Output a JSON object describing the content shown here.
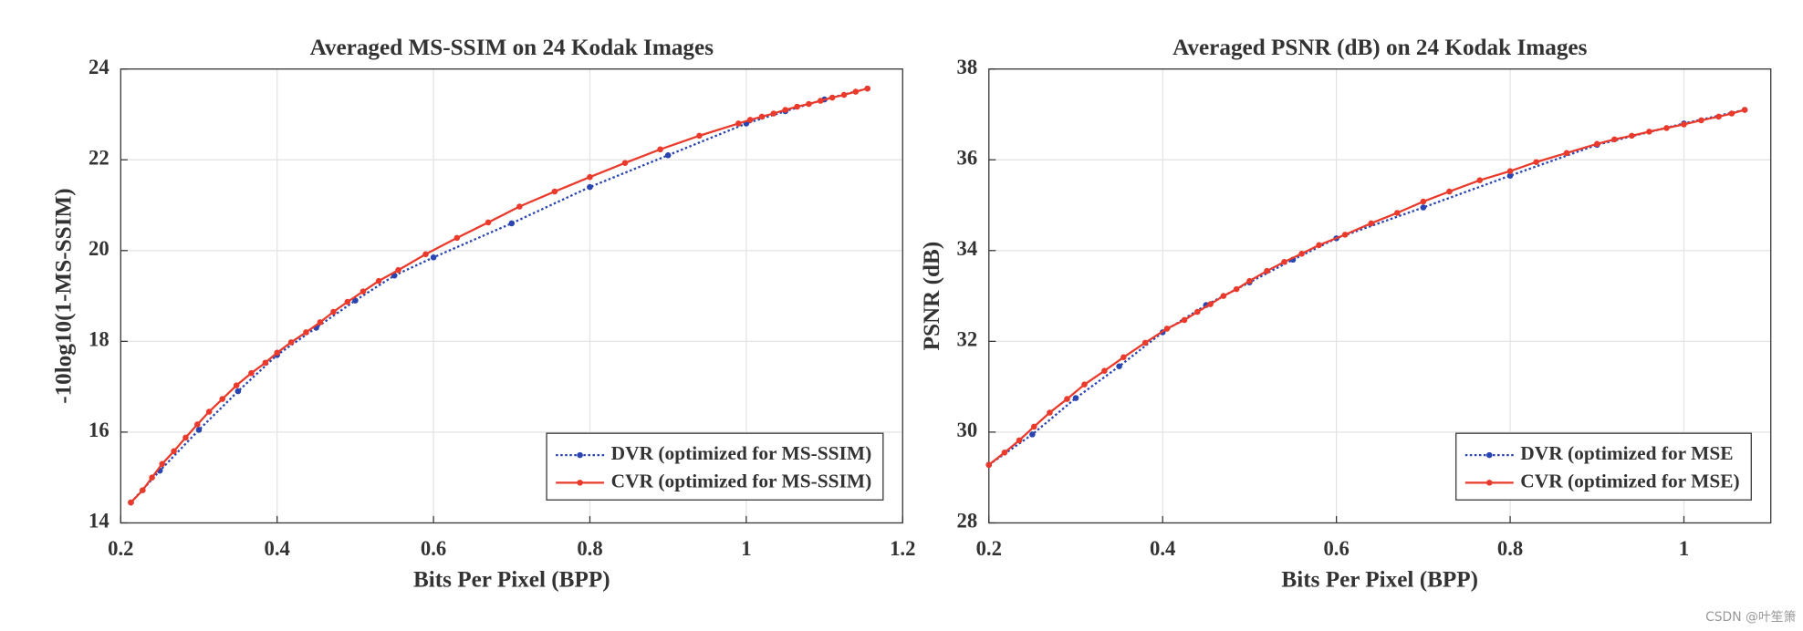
{
  "chart_data": [
    {
      "type": "line",
      "title": "Averaged MS-SSIM on 24 Kodak Images",
      "xlabel": "Bits Per Pixel (BPP)",
      "ylabel": "-10log10(1-MS-SSIM)",
      "xlim": [
        0.2,
        1.2
      ],
      "ylim": [
        14,
        24
      ],
      "xticks": [
        0.2,
        0.4,
        0.6,
        0.8,
        1,
        1.2
      ],
      "yticks": [
        14,
        16,
        18,
        20,
        22,
        24
      ],
      "grid": true,
      "legend_loc": "lower right",
      "series": [
        {
          "name": "DVR (optimized for MS-SSIM)",
          "color": "#2a45b0",
          "line_style": "dotted",
          "x": [
            0.213,
            0.25,
            0.3,
            0.35,
            0.4,
            0.45,
            0.5,
            0.55,
            0.6,
            0.7,
            0.8,
            0.9,
            1.0,
            1.05,
            1.1,
            1.155
          ],
          "values": [
            14.45,
            15.15,
            16.05,
            16.9,
            17.7,
            18.3,
            18.9,
            19.45,
            19.85,
            20.6,
            21.4,
            22.1,
            22.8,
            23.07,
            23.33,
            23.57
          ]
        },
        {
          "name": "CVR (optimized for MS-SSIM)",
          "color": "#ea3a2c",
          "line_style": "solid",
          "x": [
            0.213,
            0.228,
            0.24,
            0.253,
            0.268,
            0.283,
            0.298,
            0.313,
            0.33,
            0.348,
            0.367,
            0.385,
            0.4,
            0.418,
            0.437,
            0.455,
            0.472,
            0.49,
            0.51,
            0.53,
            0.555,
            0.59,
            0.63,
            0.67,
            0.71,
            0.755,
            0.8,
            0.845,
            0.89,
            0.94,
            0.99,
            1.005,
            1.02,
            1.035,
            1.05,
            1.065,
            1.08,
            1.095,
            1.11,
            1.125,
            1.14,
            1.155
          ],
          "values": [
            14.45,
            14.72,
            15.0,
            15.3,
            15.58,
            15.88,
            16.17,
            16.45,
            16.73,
            17.03,
            17.3,
            17.53,
            17.75,
            17.98,
            18.2,
            18.42,
            18.65,
            18.87,
            19.1,
            19.33,
            19.57,
            19.92,
            20.28,
            20.62,
            20.97,
            21.3,
            21.62,
            21.93,
            22.23,
            22.53,
            22.8,
            22.88,
            22.95,
            23.02,
            23.1,
            23.17,
            23.23,
            23.3,
            23.37,
            23.43,
            23.5,
            23.57
          ]
        }
      ]
    },
    {
      "type": "line",
      "title": "Averaged PSNR (dB) on 24 Kodak Images",
      "xlabel": "Bits Per Pixel (BPP)",
      "ylabel": "PSNR (dB)",
      "xlim": [
        0.2,
        1.1
      ],
      "ylim": [
        28,
        38
      ],
      "xticks": [
        0.2,
        0.4,
        0.6,
        0.8,
        1
      ],
      "yticks": [
        28,
        30,
        32,
        34,
        36,
        38
      ],
      "grid": true,
      "legend_loc": "lower right",
      "series": [
        {
          "name": "DVR (optimized for MSE",
          "color": "#2a45b0",
          "line_style": "dotted",
          "x": [
            0.2,
            0.25,
            0.3,
            0.35,
            0.4,
            0.45,
            0.5,
            0.55,
            0.6,
            0.7,
            0.8,
            0.9,
            1.0,
            1.07
          ],
          "values": [
            29.28,
            29.95,
            30.75,
            31.45,
            32.2,
            32.8,
            33.3,
            33.8,
            34.27,
            34.95,
            35.65,
            36.33,
            36.8,
            37.1
          ]
        },
        {
          "name": "CVR (optimized for MSE)",
          "color": "#ea3a2c",
          "line_style": "solid",
          "x": [
            0.2,
            0.218,
            0.235,
            0.252,
            0.27,
            0.29,
            0.31,
            0.333,
            0.355,
            0.38,
            0.405,
            0.425,
            0.44,
            0.455,
            0.47,
            0.485,
            0.5,
            0.52,
            0.54,
            0.56,
            0.58,
            0.61,
            0.64,
            0.67,
            0.7,
            0.73,
            0.765,
            0.8,
            0.83,
            0.865,
            0.9,
            0.92,
            0.94,
            0.96,
            0.98,
            1.0,
            1.02,
            1.04,
            1.055,
            1.07
          ],
          "values": [
            29.28,
            29.55,
            29.82,
            30.12,
            30.43,
            30.73,
            31.05,
            31.35,
            31.65,
            31.97,
            32.28,
            32.47,
            32.65,
            32.82,
            33.0,
            33.15,
            33.33,
            33.55,
            33.75,
            33.93,
            34.12,
            34.35,
            34.6,
            34.83,
            35.08,
            35.3,
            35.55,
            35.75,
            35.95,
            36.15,
            36.35,
            36.45,
            36.53,
            36.62,
            36.7,
            36.78,
            36.87,
            36.95,
            37.02,
            37.1
          ]
        }
      ]
    }
  ],
  "watermark": "CSDN @叶笙箫"
}
